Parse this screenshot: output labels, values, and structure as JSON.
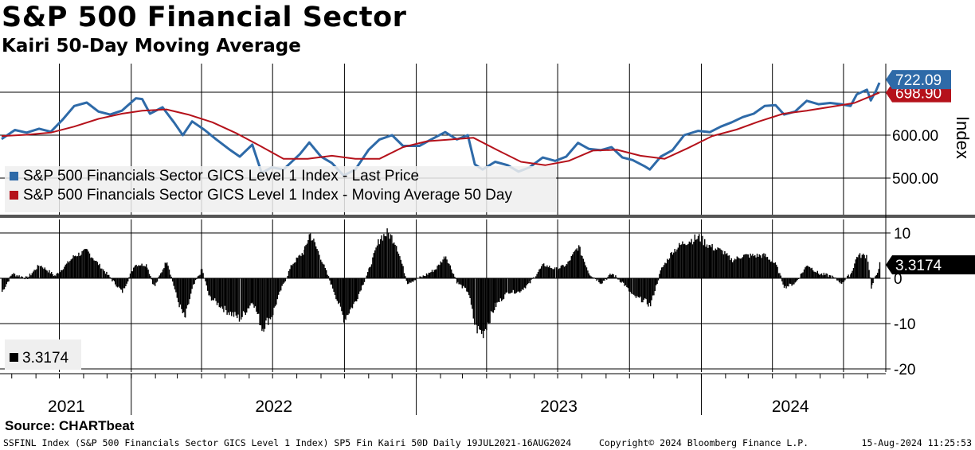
{
  "title": "S&P 500 Financial Sector",
  "subtitle": "Kairi 50-Day Moving Average",
  "source": "Source: CHARTbeat",
  "footer": {
    "left": "SSFINL Index (S&P 500 Financials Sector GICS Level 1 Index) SP5 Fin Kairi 50D  Daily 19JUL2021-16AUG2024",
    "center": "Copyright© 2024 Bloomberg Finance L.P.",
    "right": "15-Aug-2024 11:25:53"
  },
  "colors": {
    "price": "#2e6aa8",
    "ma": "#b5121b",
    "kairi": "#000000",
    "grid": "#000000"
  },
  "chart_data": [
    {
      "type": "line",
      "panel": "upper",
      "x_range": [
        "2021-07-19",
        "2024-08-16"
      ],
      "y_axis_label": "Index",
      "ylim": [
        480,
        780
      ],
      "y_ticks": [
        500,
        600
      ],
      "y_tick_labels": [
        "500.00",
        "600.00"
      ],
      "legend_position": "bottom-left",
      "last_values": [
        {
          "label": "722.09",
          "color": "#2e6aa8"
        },
        {
          "label": "698.90",
          "color": "#b5121b"
        }
      ],
      "series": [
        {
          "name": "S&P 500 Financials Sector GICS Level 1 Index - Last Price",
          "color": "#2e6aa8",
          "points": [
            [
              "2021-07-19",
              591
            ],
            [
              "2021-08-05",
              612
            ],
            [
              "2021-08-20",
              606
            ],
            [
              "2021-09-05",
              615
            ],
            [
              "2021-09-20",
              608
            ],
            [
              "2021-10-05",
              636
            ],
            [
              "2021-10-20",
              668
            ],
            [
              "2021-11-05",
              676
            ],
            [
              "2021-11-20",
              655
            ],
            [
              "2021-12-05",
              648
            ],
            [
              "2021-12-20",
              657
            ],
            [
              "2022-01-07",
              686
            ],
            [
              "2022-01-15",
              684
            ],
            [
              "2022-01-25",
              650
            ],
            [
              "2022-02-10",
              665
            ],
            [
              "2022-02-25",
              629
            ],
            [
              "2022-03-08",
              600
            ],
            [
              "2022-03-20",
              632
            ],
            [
              "2022-04-05",
              612
            ],
            [
              "2022-04-20",
              590
            ],
            [
              "2022-05-08",
              565
            ],
            [
              "2022-05-20",
              550
            ],
            [
              "2022-06-05",
              578
            ],
            [
              "2022-06-17",
              512
            ],
            [
              "2022-06-30",
              525
            ],
            [
              "2022-07-15",
              520
            ],
            [
              "2022-08-05",
              556
            ],
            [
              "2022-08-17",
              583
            ],
            [
              "2022-09-01",
              550
            ],
            [
              "2022-09-15",
              535
            ],
            [
              "2022-09-30",
              506
            ],
            [
              "2022-10-15",
              520
            ],
            [
              "2022-11-01",
              566
            ],
            [
              "2022-11-15",
              590
            ],
            [
              "2022-12-01",
              600
            ],
            [
              "2022-12-15",
              575
            ],
            [
              "2023-01-05",
              575
            ],
            [
              "2023-01-20",
              590
            ],
            [
              "2023-02-07",
              607
            ],
            [
              "2023-02-22",
              590
            ],
            [
              "2023-03-08",
              600
            ],
            [
              "2023-03-17",
              532
            ],
            [
              "2023-03-27",
              520
            ],
            [
              "2023-04-12",
              538
            ],
            [
              "2023-04-28",
              530
            ],
            [
              "2023-05-12",
              515
            ],
            [
              "2023-05-26",
              525
            ],
            [
              "2023-06-12",
              548
            ],
            [
              "2023-06-28",
              540
            ],
            [
              "2023-07-12",
              550
            ],
            [
              "2023-07-27",
              582
            ],
            [
              "2023-08-10",
              568
            ],
            [
              "2023-08-25",
              565
            ],
            [
              "2023-09-08",
              572
            ],
            [
              "2023-09-22",
              548
            ],
            [
              "2023-10-05",
              542
            ],
            [
              "2023-10-20",
              528
            ],
            [
              "2023-10-27",
              520
            ],
            [
              "2023-11-10",
              550
            ],
            [
              "2023-11-25",
              565
            ],
            [
              "2023-12-10",
              600
            ],
            [
              "2023-12-28",
              610
            ],
            [
              "2024-01-12",
              607
            ],
            [
              "2024-01-26",
              620
            ],
            [
              "2024-02-09",
              630
            ],
            [
              "2024-02-23",
              642
            ],
            [
              "2024-03-08",
              650
            ],
            [
              "2024-03-22",
              668
            ],
            [
              "2024-04-05",
              670
            ],
            [
              "2024-04-16",
              648
            ],
            [
              "2024-04-30",
              655
            ],
            [
              "2024-05-15",
              680
            ],
            [
              "2024-05-30",
              672
            ],
            [
              "2024-06-14",
              675
            ],
            [
              "2024-06-28",
              672
            ],
            [
              "2024-07-10",
              668
            ],
            [
              "2024-07-18",
              695
            ],
            [
              "2024-07-31",
              706
            ],
            [
              "2024-08-05",
              681
            ],
            [
              "2024-08-12",
              705
            ],
            [
              "2024-08-16",
              722.09
            ]
          ]
        },
        {
          "name": "S&P 500 Financials Sector GICS Level 1 Index - Moving Average 50 Day",
          "color": "#b5121b",
          "points": [
            [
              "2021-07-19",
              598
            ],
            [
              "2021-08-20",
              601
            ],
            [
              "2021-09-20",
              606
            ],
            [
              "2021-10-20",
              620
            ],
            [
              "2021-11-20",
              638
            ],
            [
              "2021-12-20",
              650
            ],
            [
              "2022-01-15",
              657
            ],
            [
              "2022-02-15",
              660
            ],
            [
              "2022-03-15",
              648
            ],
            [
              "2022-04-15",
              630
            ],
            [
              "2022-05-15",
              605
            ],
            [
              "2022-06-15",
              575
            ],
            [
              "2022-07-15",
              545
            ],
            [
              "2022-08-15",
              545
            ],
            [
              "2022-09-15",
              552
            ],
            [
              "2022-10-15",
              545
            ],
            [
              "2022-11-15",
              545
            ],
            [
              "2022-12-15",
              572
            ],
            [
              "2023-01-15",
              586
            ],
            [
              "2023-02-15",
              590
            ],
            [
              "2023-03-15",
              594
            ],
            [
              "2023-04-15",
              565
            ],
            [
              "2023-05-15",
              538
            ],
            [
              "2023-06-15",
              530
            ],
            [
              "2023-07-15",
              540
            ],
            [
              "2023-08-15",
              564
            ],
            [
              "2023-09-15",
              566
            ],
            [
              "2023-10-15",
              552
            ],
            [
              "2023-11-15",
              545
            ],
            [
              "2023-12-15",
              570
            ],
            [
              "2024-01-15",
              598
            ],
            [
              "2024-02-15",
              613
            ],
            [
              "2024-03-15",
              632
            ],
            [
              "2024-04-15",
              650
            ],
            [
              "2024-05-15",
              657
            ],
            [
              "2024-06-15",
              666
            ],
            [
              "2024-07-15",
              675
            ],
            [
              "2024-08-16",
              698.9
            ]
          ]
        }
      ]
    },
    {
      "type": "bar",
      "panel": "lower",
      "ylim": [
        -22,
        12
      ],
      "y_ticks": [
        10,
        0,
        -10,
        -20
      ],
      "y_tick_labels": [
        "10",
        "0",
        "-10",
        "-20"
      ],
      "legend_position": "bottom-left",
      "last_value_label": "3.3174",
      "series": [
        {
          "name": "3.3174",
          "color": "#000000",
          "points": [
            [
              "2021-07-19",
              -3
            ],
            [
              "2021-08-01",
              1
            ],
            [
              "2021-08-20",
              0
            ],
            [
              "2021-09-05",
              3
            ],
            [
              "2021-09-25",
              0.5
            ],
            [
              "2021-10-20",
              5
            ],
            [
              "2021-11-05",
              6
            ],
            [
              "2021-11-25",
              2
            ],
            [
              "2021-12-10",
              -1
            ],
            [
              "2021-12-20",
              -3
            ],
            [
              "2022-01-05",
              3
            ],
            [
              "2022-01-20",
              3
            ],
            [
              "2022-01-30",
              -2
            ],
            [
              "2022-02-15",
              4
            ],
            [
              "2022-03-01",
              -5
            ],
            [
              "2022-03-10",
              -9
            ],
            [
              "2022-03-20",
              -2
            ],
            [
              "2022-04-01",
              2
            ],
            [
              "2022-04-10",
              -4
            ],
            [
              "2022-05-01",
              -7
            ],
            [
              "2022-05-20",
              -9
            ],
            [
              "2022-06-05",
              -5
            ],
            [
              "2022-06-17",
              -11
            ],
            [
              "2022-06-30",
              -8
            ],
            [
              "2022-07-10",
              -3
            ],
            [
              "2022-07-25",
              3
            ],
            [
              "2022-08-10",
              6
            ],
            [
              "2022-08-17",
              10
            ],
            [
              "2022-08-30",
              5
            ],
            [
              "2022-09-15",
              -2
            ],
            [
              "2022-09-30",
              -9
            ],
            [
              "2022-10-15",
              -5
            ],
            [
              "2022-11-01",
              2
            ],
            [
              "2022-11-15",
              9
            ],
            [
              "2022-11-25",
              10
            ],
            [
              "2022-12-05",
              8
            ],
            [
              "2022-12-20",
              -1
            ],
            [
              "2023-01-10",
              0.5
            ],
            [
              "2023-01-25",
              2
            ],
            [
              "2023-02-07",
              5
            ],
            [
              "2023-02-22",
              -1
            ],
            [
              "2023-03-08",
              -3
            ],
            [
              "2023-03-17",
              -11
            ],
            [
              "2023-03-27",
              -12
            ],
            [
              "2023-04-12",
              -6
            ],
            [
              "2023-04-28",
              -3
            ],
            [
              "2023-05-12",
              -3
            ],
            [
              "2023-05-26",
              -1
            ],
            [
              "2023-06-12",
              3
            ],
            [
              "2023-06-28",
              2
            ],
            [
              "2023-07-12",
              3
            ],
            [
              "2023-07-27",
              7
            ],
            [
              "2023-08-10",
              1
            ],
            [
              "2023-08-25",
              -1
            ],
            [
              "2023-09-08",
              1
            ],
            [
              "2023-09-22",
              -1
            ],
            [
              "2023-10-05",
              -4
            ],
            [
              "2023-10-20",
              -5
            ],
            [
              "2023-10-27",
              -6
            ],
            [
              "2023-11-10",
              2
            ],
            [
              "2023-11-25",
              6
            ],
            [
              "2023-12-10",
              8
            ],
            [
              "2023-12-28",
              9
            ],
            [
              "2024-01-12",
              7
            ],
            [
              "2024-01-26",
              6
            ],
            [
              "2024-02-09",
              4
            ],
            [
              "2024-02-23",
              5
            ],
            [
              "2024-03-08",
              5
            ],
            [
              "2024-03-22",
              5
            ],
            [
              "2024-04-05",
              3
            ],
            [
              "2024-04-16",
              -2
            ],
            [
              "2024-04-30",
              -1
            ],
            [
              "2024-05-15",
              3
            ],
            [
              "2024-05-30",
              1
            ],
            [
              "2024-06-14",
              0.5
            ],
            [
              "2024-06-28",
              -1
            ],
            [
              "2024-07-10",
              1
            ],
            [
              "2024-07-18",
              5
            ],
            [
              "2024-07-31",
              5
            ],
            [
              "2024-08-05",
              -2
            ],
            [
              "2024-08-12",
              1
            ],
            [
              "2024-08-16",
              3.3174
            ]
          ]
        }
      ]
    }
  ],
  "x_axis": {
    "year_labels": [
      "2021",
      "2022",
      "2023",
      "2024"
    ]
  }
}
